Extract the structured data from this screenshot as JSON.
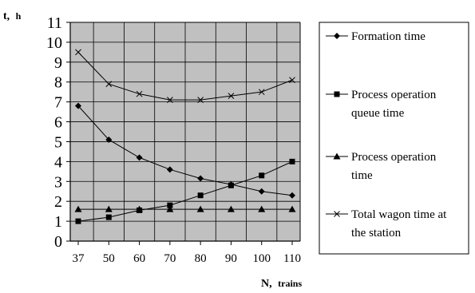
{
  "chart_data": {
    "type": "line",
    "title": "",
    "ylabel": "t, h",
    "ylabel_main": "t,",
    "ylabel_unit": "h",
    "xlabel": "N, trains",
    "xlabel_main": "N,",
    "xlabel_unit": "trains",
    "categories": [
      "37",
      "50",
      "60",
      "70",
      "80",
      "90",
      "100",
      "110"
    ],
    "ylim": [
      0,
      11
    ],
    "yticks": [
      0,
      1,
      2,
      3,
      4,
      5,
      6,
      7,
      8,
      9,
      10,
      11
    ],
    "grid": true,
    "legend_position": "right",
    "series": [
      {
        "name": "Formation time",
        "legend_lines": [
          "Formation time"
        ],
        "marker": "diamond",
        "values": [
          6.8,
          5.1,
          4.2,
          3.6,
          3.15,
          2.85,
          2.5,
          2.3
        ]
      },
      {
        "name": "Process operation queue time",
        "legend_lines": [
          "Process operation",
          "queue time"
        ],
        "marker": "square",
        "values": [
          1.0,
          1.2,
          1.55,
          1.8,
          2.3,
          2.8,
          3.3,
          4.0
        ]
      },
      {
        "name": "Process operation time",
        "legend_lines": [
          "Process operation",
          "time"
        ],
        "marker": "triangle",
        "values": [
          1.6,
          1.6,
          1.6,
          1.6,
          1.6,
          1.6,
          1.6,
          1.6
        ]
      },
      {
        "name": "Total wagon time at the station",
        "legend_lines": [
          "Total wagon time at",
          "the station"
        ],
        "marker": "cross",
        "values": [
          9.5,
          7.9,
          7.4,
          7.1,
          7.1,
          7.3,
          7.5,
          8.1
        ]
      }
    ],
    "colors": {
      "plot_bg": "#c0c0c0",
      "line": "#000000",
      "grid": "#000000"
    }
  }
}
